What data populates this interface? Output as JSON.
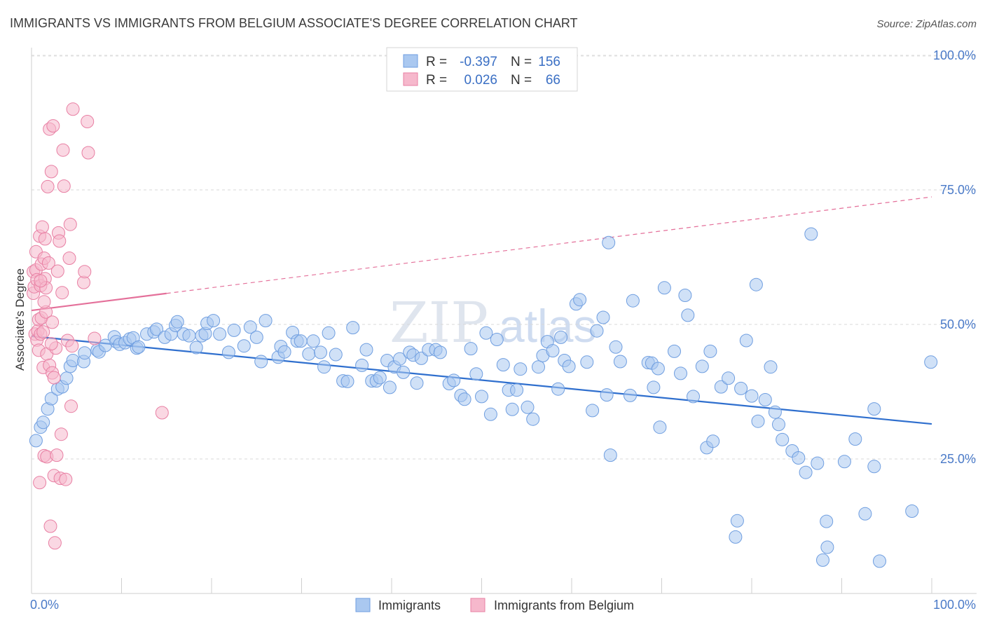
{
  "title": "IMMIGRANTS VS IMMIGRANTS FROM BELGIUM ASSOCIATE'S DEGREE CORRELATION CHART",
  "source": "Source: ZipAtlas.com",
  "watermark": {
    "zip": "ZIP",
    "atlas": "atlas"
  },
  "legend_box": {
    "rows": [
      {
        "r_label": "R =",
        "r_value": "-0.397",
        "n_label": "N =",
        "n_value": "156",
        "color": "#aac8f0",
        "stroke": "#6f9ee0"
      },
      {
        "r_label": "R =",
        "r_value": "0.026",
        "n_label": "N =",
        "n_value": "66",
        "color": "#f6b8cc",
        "stroke": "#e87fa3"
      }
    ]
  },
  "bottom_legend": [
    {
      "label": "Immigrants",
      "color": "#aac8f0",
      "stroke": "#6f9ee0"
    },
    {
      "label": "Immigrants from Belgium",
      "color": "#f6b8cc",
      "stroke": "#e87fa3"
    }
  ],
  "chart_data": {
    "type": "scatter",
    "title": "IMMIGRANTS VS IMMIGRANTS FROM BELGIUM ASSOCIATE'S DEGREE CORRELATION CHART",
    "xlabel": "",
    "ylabel": "Associate's Degree",
    "xlim": [
      0,
      100
    ],
    "ylim": [
      0,
      100
    ],
    "x_tick_labels": [
      "0.0%",
      "100.0%"
    ],
    "y_tick_labels": [
      "25.0%",
      "50.0%",
      "75.0%",
      "100.0%"
    ],
    "y_ticks": [
      25,
      50,
      75,
      100
    ],
    "grid": true,
    "legend_position": "top-center",
    "series": [
      {
        "name": "Immigrants",
        "color": "#aac8f0",
        "stroke": "#6f9ee0",
        "trend": {
          "x": [
            0,
            100
          ],
          "y": [
            47.8,
            31.5
          ],
          "color": "#2f6fce"
        },
        "points": [
          [
            0.5,
            28.4
          ],
          [
            1.0,
            30.9
          ],
          [
            1.3,
            31.8
          ],
          [
            1.8,
            34.3
          ],
          [
            2.2,
            36.2
          ],
          [
            2.9,
            38.0
          ],
          [
            3.4,
            38.4
          ],
          [
            3.9,
            40.0
          ],
          [
            4.3,
            42.2
          ],
          [
            4.6,
            43.3
          ],
          [
            5.8,
            43.1
          ],
          [
            5.9,
            44.7
          ],
          [
            7.3,
            45.2
          ],
          [
            7.5,
            44.9
          ],
          [
            8.2,
            46.1
          ],
          [
            9.2,
            47.7
          ],
          [
            9.4,
            46.8
          ],
          [
            9.8,
            46.3
          ],
          [
            10.4,
            46.6
          ],
          [
            10.9,
            47.3
          ],
          [
            11.3,
            47.5
          ],
          [
            11.7,
            45.6
          ],
          [
            11.9,
            45.8
          ],
          [
            12.8,
            48.2
          ],
          [
            13.6,
            48.6
          ],
          [
            13.9,
            49.1
          ],
          [
            14.8,
            47.6
          ],
          [
            15.5,
            48.2
          ],
          [
            16.0,
            49.8
          ],
          [
            16.2,
            50.5
          ],
          [
            16.9,
            48.2
          ],
          [
            17.5,
            47.9
          ],
          [
            18.3,
            45.7
          ],
          [
            18.9,
            47.9
          ],
          [
            19.3,
            48.3
          ],
          [
            19.5,
            50.2
          ],
          [
            20.2,
            50.7
          ],
          [
            20.9,
            48.2
          ],
          [
            21.9,
            44.8
          ],
          [
            22.5,
            48.9
          ],
          [
            23.6,
            46.0
          ],
          [
            24.3,
            49.5
          ],
          [
            25.0,
            47.6
          ],
          [
            25.5,
            43.1
          ],
          [
            26.0,
            50.7
          ],
          [
            27.4,
            43.9
          ],
          [
            27.7,
            45.9
          ],
          [
            28.1,
            44.9
          ],
          [
            29.0,
            48.5
          ],
          [
            29.5,
            46.9
          ],
          [
            29.9,
            46.9
          ],
          [
            30.8,
            44.5
          ],
          [
            31.3,
            46.9
          ],
          [
            32.1,
            44.8
          ],
          [
            32.5,
            42.1
          ],
          [
            33.0,
            48.4
          ],
          [
            33.8,
            44.4
          ],
          [
            34.6,
            39.5
          ],
          [
            35.1,
            39.4
          ],
          [
            35.7,
            49.4
          ],
          [
            36.7,
            42.4
          ],
          [
            37.2,
            45.3
          ],
          [
            37.8,
            39.5
          ],
          [
            38.3,
            39.5
          ],
          [
            38.7,
            40.1
          ],
          [
            39.5,
            43.3
          ],
          [
            39.8,
            38.3
          ],
          [
            40.3,
            42.1
          ],
          [
            40.9,
            43.6
          ],
          [
            41.3,
            41.1
          ],
          [
            42.0,
            44.8
          ],
          [
            42.4,
            44.3
          ],
          [
            42.8,
            39.1
          ],
          [
            43.3,
            43.7
          ],
          [
            44.1,
            45.3
          ],
          [
            44.9,
            45.3
          ],
          [
            45.4,
            44.8
          ],
          [
            46.4,
            39.0
          ],
          [
            46.9,
            39.6
          ],
          [
            47.7,
            36.8
          ],
          [
            48.1,
            36.1
          ],
          [
            48.8,
            45.5
          ],
          [
            49.4,
            40.8
          ],
          [
            50.0,
            36.6
          ],
          [
            50.5,
            48.4
          ],
          [
            51.0,
            33.3
          ],
          [
            51.7,
            47.2
          ],
          [
            52.4,
            42.5
          ],
          [
            53.0,
            37.8
          ],
          [
            53.4,
            34.2
          ],
          [
            53.9,
            37.8
          ],
          [
            54.3,
            41.7
          ],
          [
            55.1,
            34.6
          ],
          [
            55.7,
            32.4
          ],
          [
            56.3,
            42.1
          ],
          [
            56.8,
            44.2
          ],
          [
            57.3,
            46.8
          ],
          [
            57.9,
            45.1
          ],
          [
            58.5,
            38.0
          ],
          [
            58.8,
            47.6
          ],
          [
            59.2,
            43.3
          ],
          [
            59.7,
            42.2
          ],
          [
            60.5,
            53.8
          ],
          [
            60.9,
            54.6
          ],
          [
            61.7,
            43.0
          ],
          [
            62.3,
            34.0
          ],
          [
            62.8,
            48.8
          ],
          [
            63.5,
            51.3
          ],
          [
            63.9,
            36.9
          ],
          [
            64.1,
            65.2
          ],
          [
            64.3,
            25.7
          ],
          [
            64.9,
            45.8
          ],
          [
            65.4,
            43.1
          ],
          [
            66.5,
            36.8
          ],
          [
            66.8,
            54.4
          ],
          [
            68.5,
            42.9
          ],
          [
            68.9,
            42.8
          ],
          [
            69.1,
            38.3
          ],
          [
            69.6,
            41.8
          ],
          [
            69.8,
            30.9
          ],
          [
            70.3,
            56.8
          ],
          [
            71.4,
            45.0
          ],
          [
            72.1,
            40.9
          ],
          [
            72.6,
            55.4
          ],
          [
            72.9,
            51.7
          ],
          [
            73.5,
            36.6
          ],
          [
            74.5,
            42.2
          ],
          [
            75.0,
            27.1
          ],
          [
            75.4,
            45.0
          ],
          [
            75.7,
            28.3
          ],
          [
            76.6,
            38.4
          ],
          [
            77.4,
            40.0
          ],
          [
            78.2,
            10.5
          ],
          [
            78.8,
            38.1
          ],
          [
            79.4,
            47.0
          ],
          [
            80.0,
            36.7
          ],
          [
            80.5,
            57.4
          ],
          [
            80.7,
            32.0
          ],
          [
            81.5,
            36.0
          ],
          [
            82.1,
            42.1
          ],
          [
            82.6,
            33.7
          ],
          [
            83.0,
            31.4
          ],
          [
            83.4,
            28.6
          ],
          [
            84.5,
            26.5
          ],
          [
            85.2,
            25.2
          ],
          [
            86.6,
            66.8
          ],
          [
            87.3,
            24.2
          ],
          [
            87.9,
            6.2
          ],
          [
            88.4,
            8.6
          ],
          [
            90.3,
            24.5
          ],
          [
            91.5,
            28.7
          ],
          [
            92.6,
            14.8
          ],
          [
            93.6,
            34.3
          ],
          [
            94.2,
            6.0
          ],
          [
            97.8,
            15.3
          ],
          [
            99.9,
            43.0
          ],
          [
            93.6,
            23.6
          ],
          [
            86.0,
            22.5
          ],
          [
            88.3,
            13.4
          ],
          [
            78.4,
            13.5
          ]
        ]
      },
      {
        "name": "Immigrants from Belgium",
        "color": "#f6b8cc",
        "stroke": "#e87fa3",
        "trend": {
          "x": [
            0,
            100
          ],
          "y": [
            52.6,
            73.7
          ],
          "solid_until": 15,
          "color": "#e4709a"
        },
        "points": [
          [
            0.2,
            59.8
          ],
          [
            0.2,
            55.8
          ],
          [
            0.3,
            57.0
          ],
          [
            0.4,
            48.2
          ],
          [
            0.5,
            60.1
          ],
          [
            0.5,
            63.5
          ],
          [
            0.6,
            58.3
          ],
          [
            0.6,
            47.1
          ],
          [
            0.7,
            48.8
          ],
          [
            0.8,
            45.2
          ],
          [
            0.8,
            50.9
          ],
          [
            0.9,
            20.6
          ],
          [
            0.9,
            66.4
          ],
          [
            1.0,
            57.2
          ],
          [
            1.0,
            48.2
          ],
          [
            1.1,
            61.2
          ],
          [
            1.1,
            51.2
          ],
          [
            1.2,
            68.1
          ],
          [
            1.3,
            48.6
          ],
          [
            1.3,
            42.0
          ],
          [
            1.4,
            25.6
          ],
          [
            1.4,
            62.3
          ],
          [
            1.5,
            65.9
          ],
          [
            1.5,
            58.5
          ],
          [
            1.6,
            52.3
          ],
          [
            1.6,
            56.8
          ],
          [
            1.7,
            44.5
          ],
          [
            1.7,
            25.4
          ],
          [
            1.8,
            75.6
          ],
          [
            1.9,
            61.4
          ],
          [
            2.0,
            86.3
          ],
          [
            2.0,
            42.4
          ],
          [
            2.1,
            12.5
          ],
          [
            2.2,
            78.4
          ],
          [
            2.3,
            41.0
          ],
          [
            2.3,
            50.4
          ],
          [
            2.4,
            86.9
          ],
          [
            2.5,
            21.9
          ],
          [
            2.5,
            40.1
          ],
          [
            2.6,
            9.4
          ],
          [
            2.7,
            45.6
          ],
          [
            2.8,
            25.7
          ],
          [
            2.9,
            59.9
          ],
          [
            3.0,
            67.0
          ],
          [
            3.1,
            65.5
          ],
          [
            3.2,
            21.4
          ],
          [
            3.3,
            29.6
          ],
          [
            3.4,
            55.9
          ],
          [
            3.5,
            82.4
          ],
          [
            3.6,
            75.7
          ],
          [
            3.8,
            21.2
          ],
          [
            4.0,
            47.0
          ],
          [
            4.2,
            62.3
          ],
          [
            4.3,
            68.6
          ],
          [
            4.4,
            34.8
          ],
          [
            4.5,
            46.0
          ],
          [
            4.6,
            90.0
          ],
          [
            5.8,
            57.8
          ],
          [
            5.9,
            59.8
          ],
          [
            6.2,
            87.7
          ],
          [
            6.3,
            81.9
          ],
          [
            7.0,
            47.4
          ],
          [
            14.5,
            33.6
          ],
          [
            1.0,
            58.1
          ],
          [
            1.4,
            54.2
          ],
          [
            2.2,
            46.4
          ]
        ]
      }
    ]
  }
}
